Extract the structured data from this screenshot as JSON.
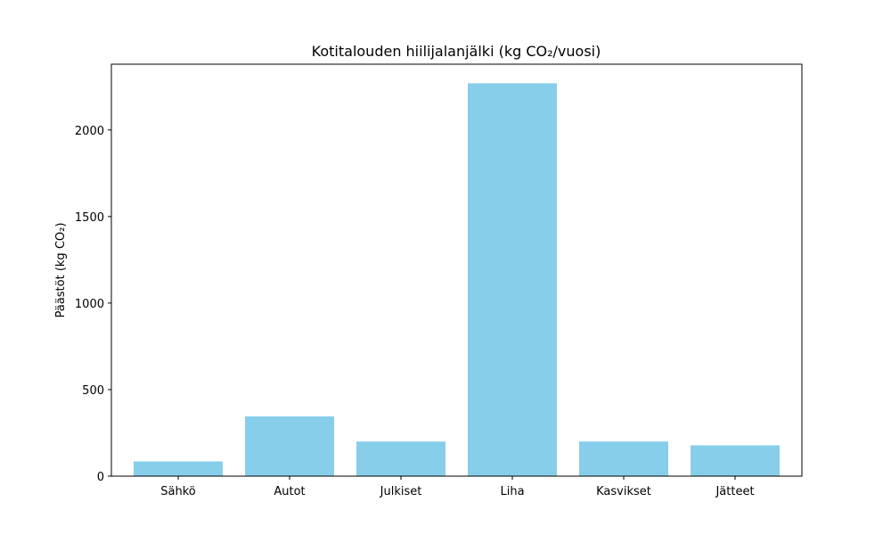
{
  "chart_data": {
    "type": "bar",
    "title": "Kotitalouden hiilijalanjälki (kg CO₂/vuosi)",
    "xlabel": "",
    "ylabel": "Päästöt (kg CO₂)",
    "categories": [
      "Sähkö",
      "Autot",
      "Julkiset",
      "Liha",
      "Kasvikset",
      "Jätteet"
    ],
    "values": [
      85,
      345,
      200,
      2270,
      200,
      178
    ],
    "ylim": [
      0,
      2380
    ],
    "yticks": [
      0,
      500,
      1000,
      1500,
      2000
    ],
    "ytick_labels": [
      "0",
      "500",
      "1000",
      "1500",
      "2000"
    ],
    "bar_color": "#87CEEB",
    "grid": false,
    "legend": "none"
  }
}
